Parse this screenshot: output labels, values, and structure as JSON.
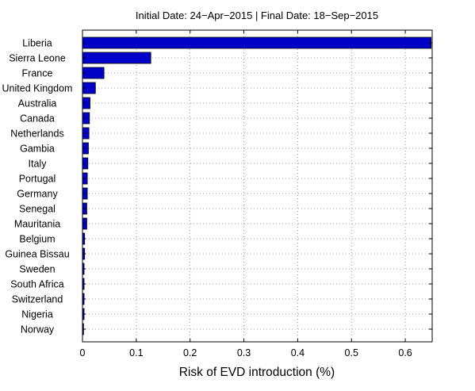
{
  "chart_data": {
    "type": "bar",
    "orientation": "horizontal",
    "title": "Initial Date: 24−Apr−2015 | Final Date: 18−Sep−2015",
    "xlabel": "Risk of EVD introduction (%)",
    "ylabel": "",
    "xlim": [
      0,
      0.65
    ],
    "xticks": [
      0,
      0.1,
      0.2,
      0.3,
      0.4,
      0.5,
      0.6
    ],
    "xtick_labels": [
      "0",
      "0.1",
      "0.2",
      "0.3",
      "0.4",
      "0.5",
      "0.6"
    ],
    "grid": true,
    "bar_color": "#0000c8",
    "categories": [
      "Liberia",
      "Sierra Leone",
      "France",
      "United Kingdom",
      "Australia",
      "Canada",
      "Netherlands",
      "Gambia",
      "Italy",
      "Portugal",
      "Germany",
      "Senegal",
      "Mauritania",
      "Belgium",
      "Guinea Bissau",
      "Sweden",
      "South Africa",
      "Switzerland",
      "Nigeria",
      "Norway"
    ],
    "values": [
      0.648,
      0.127,
      0.04,
      0.024,
      0.014,
      0.013,
      0.012,
      0.011,
      0.01,
      0.009,
      0.009,
      0.008,
      0.008,
      0.004,
      0.004,
      0.003,
      0.003,
      0.003,
      0.003,
      0.002
    ]
  }
}
